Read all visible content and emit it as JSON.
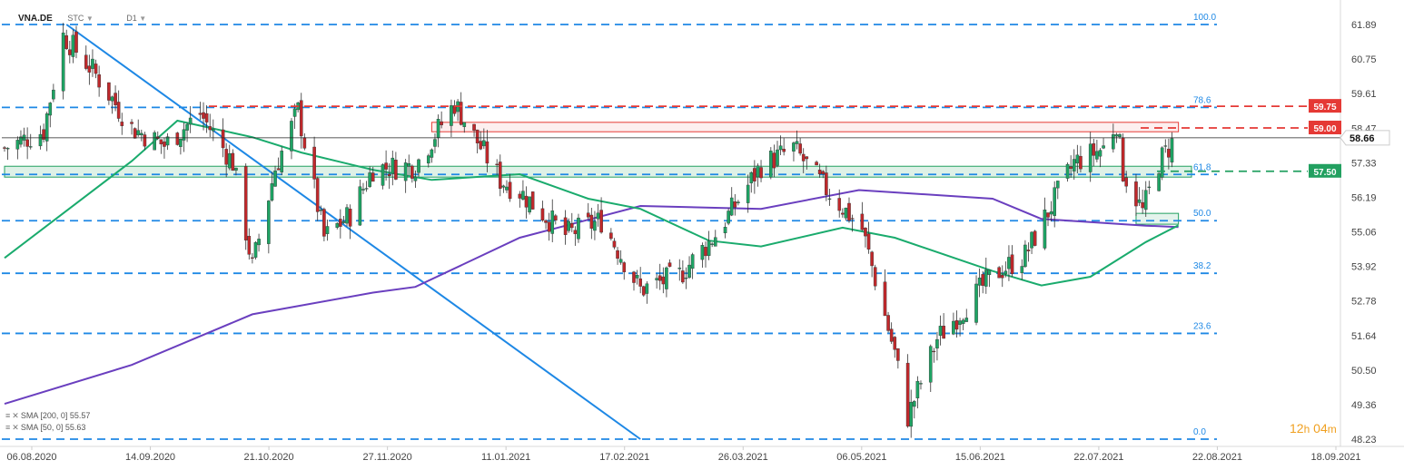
{
  "header": {
    "symbol": "VNA.DE",
    "chart_type_label": "STC",
    "interval_label": "D1"
  },
  "indicators": [
    {
      "label": "SMA [200, 0] 55.57",
      "color": "#6a3fbf"
    },
    {
      "label": "SMA [50, 0] 55.63",
      "color": "#1aab6d"
    }
  ],
  "timer": {
    "hours": "12",
    "h_unit": "h",
    "minutes": "04",
    "m_unit": "m"
  },
  "colors": {
    "up_candle": "#1ea464",
    "down_candle": "#c0282b",
    "fib_line": "#1e88e5",
    "resistance": "#e53935",
    "support": "#22a060",
    "trendline": "#1e88e5",
    "price_line": "#222222"
  },
  "chart_data": {
    "type": "candlestick",
    "title": "",
    "xlabel": "",
    "ylabel": "",
    "ylim": [
      48.23,
      63.0
    ],
    "y_axis_ticks": [
      "61.89",
      "60.75",
      "59.61",
      "58.47",
      "57.33",
      "56.19",
      "55.06",
      "53.92",
      "52.78",
      "51.64",
      "50.50",
      "49.36",
      "48.23"
    ],
    "x_axis_ticks": [
      "06.08.2020",
      "14.09.2020",
      "21.10.2020",
      "27.11.2020",
      "11.01.2021",
      "17.02.2021",
      "26.03.2021",
      "06.05.2021",
      "15.06.2021",
      "22.07.2021",
      "22.08.2021",
      "18.09.2021"
    ],
    "current_price": "58.66",
    "price_labels": [
      {
        "value": "59.75",
        "kind": "resistance"
      },
      {
        "value": "59.00",
        "kind": "resistance"
      },
      {
        "value": "57.50",
        "kind": "support"
      }
    ],
    "fibonacci_levels": [
      {
        "label": "100.0",
        "value": 62.58
      },
      {
        "label": "78.6",
        "value": 59.71
      },
      {
        "label": "61.8",
        "value": 57.39
      },
      {
        "label": "50.0",
        "value": 55.79
      },
      {
        "label": "38.2",
        "value": 53.97
      },
      {
        "label": "23.6",
        "value": 51.89
      },
      {
        "label": "0.0",
        "value": 48.23
      }
    ],
    "zones": [
      {
        "name": "resistance-zone-top",
        "from_date": "2020-12-15",
        "to_date": "2021-08-01",
        "low": 58.9,
        "high": 59.1
      },
      {
        "name": "support-zone-left",
        "from_date": "2020-08-06",
        "to_date": "2021-08-05",
        "low": 57.33,
        "high": 57.58
      },
      {
        "name": "support-zone-right",
        "from_date": "2021-07-19",
        "to_date": "2021-08-01",
        "low": 55.7,
        "high": 55.95
      }
    ],
    "trendline": {
      "from": {
        "date": "2020-08-25",
        "price": 62.58
      },
      "to": {
        "date": "2021-02-17",
        "price": 48.23
      }
    },
    "sma200": [
      [
        "2020-08-06",
        49.45
      ],
      [
        "2020-09-14",
        50.8
      ],
      [
        "2020-10-21",
        52.55
      ],
      [
        "2020-11-27",
        53.3
      ],
      [
        "2020-12-10",
        53.5
      ],
      [
        "2021-01-11",
        55.2
      ],
      [
        "2021-02-17",
        56.3
      ],
      [
        "2021-03-26",
        56.2
      ],
      [
        "2021-04-25",
        56.85
      ],
      [
        "2021-06-05",
        56.55
      ],
      [
        "2021-06-20",
        55.85
      ],
      [
        "2021-07-22",
        55.62
      ],
      [
        "2021-08-01",
        55.57
      ]
    ],
    "sma50": [
      [
        "2020-08-06",
        54.5
      ],
      [
        "2020-09-14",
        57.85
      ],
      [
        "2020-09-28",
        59.25
      ],
      [
        "2020-10-21",
        58.68
      ],
      [
        "2020-11-05",
        58.15
      ],
      [
        "2020-11-27",
        57.55
      ],
      [
        "2020-12-15",
        57.2
      ],
      [
        "2021-01-11",
        57.4
      ],
      [
        "2021-02-01",
        56.55
      ],
      [
        "2021-02-17",
        56.2
      ],
      [
        "2021-03-10",
        55.1
      ],
      [
        "2021-03-26",
        54.9
      ],
      [
        "2021-04-20",
        55.55
      ],
      [
        "2021-05-06",
        55.2
      ],
      [
        "2021-06-05",
        54.05
      ],
      [
        "2021-06-20",
        53.55
      ],
      [
        "2021-07-05",
        53.85
      ],
      [
        "2021-07-22",
        55.05
      ],
      [
        "2021-08-01",
        55.63
      ]
    ],
    "price_path": [
      [
        "2020-08-06",
        58.3
      ],
      [
        "2020-08-18",
        58.9
      ],
      [
        "2020-08-24",
        62.2
      ],
      [
        "2020-09-02",
        61.0
      ],
      [
        "2020-09-14",
        59.0
      ],
      [
        "2020-09-24",
        58.4
      ],
      [
        "2020-10-05",
        59.5
      ],
      [
        "2020-10-15",
        57.8
      ],
      [
        "2020-10-21",
        54.2
      ],
      [
        "2020-10-28",
        57.6
      ],
      [
        "2020-11-04",
        59.6
      ],
      [
        "2020-11-12",
        55.2
      ],
      [
        "2020-11-20",
        56.0
      ],
      [
        "2020-11-27",
        57.6
      ],
      [
        "2020-12-10",
        57.7
      ],
      [
        "2020-12-22",
        59.85
      ],
      [
        "2021-01-05",
        57.2
      ],
      [
        "2021-01-11",
        56.8
      ],
      [
        "2021-01-25",
        55.3
      ],
      [
        "2021-02-05",
        55.8
      ],
      [
        "2021-02-17",
        53.4
      ],
      [
        "2021-03-01",
        53.9
      ],
      [
        "2021-03-12",
        55.3
      ],
      [
        "2021-03-26",
        57.7
      ],
      [
        "2021-04-05",
        58.3
      ],
      [
        "2021-04-14",
        57.0
      ],
      [
        "2021-04-26",
        55.5
      ],
      [
        "2021-05-06",
        51.2
      ],
      [
        "2021-05-10",
        49.0
      ],
      [
        "2021-05-19",
        51.7
      ],
      [
        "2021-06-05",
        53.9
      ],
      [
        "2021-06-15",
        54.6
      ],
      [
        "2021-06-30",
        57.8
      ],
      [
        "2021-07-09",
        58.3
      ],
      [
        "2021-07-13",
        59.2
      ],
      [
        "2021-07-15",
        57.5
      ],
      [
        "2021-07-21",
        56.1
      ],
      [
        "2021-07-26",
        57.8
      ],
      [
        "2021-07-31",
        58.66
      ]
    ],
    "dates": {
      "start": "2020-08-06",
      "end": "2021-09-18"
    }
  }
}
